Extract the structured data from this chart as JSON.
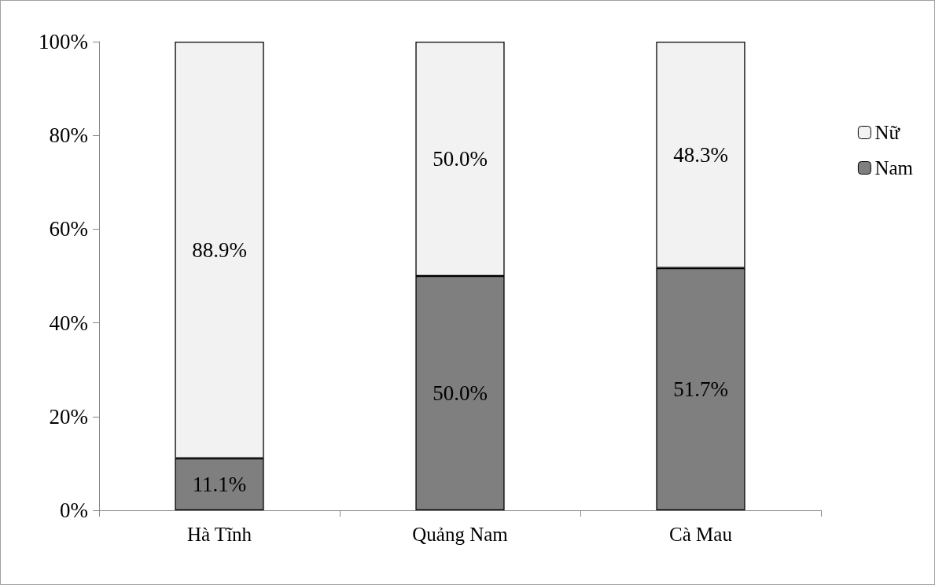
{
  "chart_data": {
    "type": "bar",
    "stacked": true,
    "categories": [
      "Hà Tĩnh",
      "Quảng Nam",
      "Cà Mau"
    ],
    "series": [
      {
        "name": "Nam",
        "color": "#7f7f7f",
        "values": [
          11.1,
          50.0,
          51.7
        ],
        "value_labels": [
          "11.1%",
          "50.0%",
          "51.7%"
        ]
      },
      {
        "name": "Nữ",
        "color": "#f2f2f2",
        "values": [
          88.9,
          50.0,
          48.3
        ],
        "value_labels": [
          "88.9%",
          "50.0%",
          "48.3%"
        ]
      }
    ],
    "ylim": [
      0,
      100
    ],
    "yticks": [
      {
        "value": 0,
        "label": "0%"
      },
      {
        "value": 20,
        "label": "20%"
      },
      {
        "value": 40,
        "label": "40%"
      },
      {
        "value": 60,
        "label": "60%"
      },
      {
        "value": 80,
        "label": "80%"
      },
      {
        "value": 100,
        "label": "100%"
      }
    ],
    "grid": false,
    "legend": "right"
  }
}
